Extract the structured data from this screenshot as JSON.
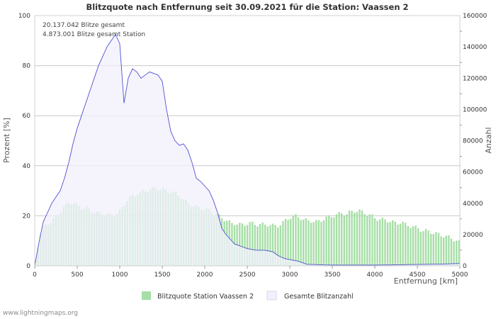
{
  "footer": "www.lightningmaps.org",
  "chart_data": {
    "type": "area",
    "title": "Blitzquote nach Entfernung seit 30.09.2021 für die Station: Vaassen 2",
    "annotations": [
      "20.137.042 Blitze gesamt",
      "4.873.001 Blitze gesamt Station"
    ],
    "xlabel": "Entfernung   [km]",
    "ylabel_left": "Prozent   [%]",
    "ylabel_right": "Anzahl",
    "xlim": [
      0,
      5000
    ],
    "ylim_left": [
      0,
      100
    ],
    "ylim_right": [
      0,
      160000
    ],
    "x_ticks": [
      0,
      500,
      1000,
      1500,
      2000,
      2500,
      3000,
      3500,
      4000,
      4500,
      5000
    ],
    "y_ticks_left": [
      0,
      20,
      40,
      60,
      80,
      100
    ],
    "y_ticks_right": [
      0,
      20000,
      40000,
      60000,
      80000,
      100000,
      120000,
      140000,
      160000
    ],
    "colors": {
      "quote_fill": "#a6dea6",
      "quote_stroke": "#8ccf8c",
      "total_fill": "#f2f0fc",
      "total_line": "#5050d0",
      "grid": "#c8c8c8"
    },
    "series": [
      {
        "name": "Blitzquote Station Vaassen 2",
        "axis": "left",
        "x": [
          0,
          50,
          100,
          150,
          200,
          250,
          300,
          350,
          400,
          450,
          500,
          550,
          600,
          650,
          700,
          750,
          800,
          850,
          900,
          950,
          1000,
          1050,
          1100,
          1150,
          1200,
          1250,
          1300,
          1350,
          1400,
          1450,
          1500,
          1550,
          1600,
          1650,
          1700,
          1750,
          1800,
          1850,
          1900,
          1950,
          2000,
          2050,
          2100,
          2150,
          2200,
          2250,
          2300,
          2350,
          2400,
          2450,
          2500,
          2550,
          2600,
          2650,
          2700,
          2750,
          2800,
          2850,
          2900,
          2950,
          3000,
          3050,
          3100,
          3150,
          3200,
          3250,
          3300,
          3350,
          3400,
          3450,
          3500,
          3550,
          3600,
          3650,
          3700,
          3750,
          3800,
          3850,
          3900,
          3950,
          4000,
          4050,
          4100,
          4150,
          4200,
          4250,
          4300,
          4350,
          4400,
          4450,
          4500,
          4550,
          4600,
          4650,
          4700,
          4750,
          4800,
          4850,
          4900,
          4950,
          5000
        ],
        "values": [
          2,
          12,
          16,
          17,
          18,
          20,
          22,
          24,
          25.5,
          25,
          24,
          23,
          23,
          22,
          21.5,
          21,
          20.5,
          20.5,
          20,
          21,
          22,
          25,
          27,
          28,
          29,
          29.5,
          30,
          30.5,
          31,
          31,
          30.5,
          30,
          29.5,
          29,
          28,
          26,
          25,
          24,
          23.5,
          23,
          22.5,
          22,
          21,
          20,
          19,
          18,
          17,
          17,
          16.5,
          16.5,
          17,
          17,
          16.5,
          16.5,
          16.5,
          16.5,
          16,
          16,
          17,
          18.5,
          19.5,
          20,
          19.5,
          18.5,
          18,
          18,
          17.5,
          18,
          19,
          19.5,
          20,
          20.5,
          21,
          20.5,
          21.5,
          22,
          22,
          21.5,
          20.5,
          20,
          19,
          18.5,
          18.5,
          18,
          17.5,
          17,
          17.5,
          16.5,
          16,
          15.5,
          15,
          14,
          14,
          13.5,
          13,
          12.5,
          12,
          11.5,
          11,
          10,
          9
        ]
      },
      {
        "name": "Gesamte Blitzanzahl",
        "axis": "right",
        "x": [
          0,
          50,
          100,
          150,
          200,
          250,
          300,
          350,
          400,
          450,
          500,
          550,
          600,
          650,
          700,
          750,
          800,
          850,
          900,
          950,
          1000,
          1050,
          1100,
          1150,
          1200,
          1250,
          1300,
          1350,
          1400,
          1450,
          1500,
          1550,
          1600,
          1650,
          1700,
          1750,
          1800,
          1850,
          1900,
          1950,
          2000,
          2050,
          2100,
          2150,
          2200,
          2250,
          2300,
          2350,
          2400,
          2450,
          2500,
          2550,
          2600,
          2650,
          2700,
          2750,
          2800,
          2850,
          2900,
          2950,
          3000,
          3050,
          3100,
          3150,
          3200,
          3300,
          3400,
          3500,
          3600,
          3800,
          4000,
          4200,
          4400,
          4600,
          4800,
          5000
        ],
        "values": [
          0,
          15000,
          28000,
          34000,
          40000,
          44000,
          48000,
          56000,
          66000,
          78000,
          88000,
          96000,
          104000,
          112000,
          120000,
          128000,
          134000,
          140000,
          144000,
          148000,
          142000,
          104000,
          120000,
          126000,
          124000,
          120000,
          122000,
          124000,
          123000,
          122000,
          118000,
          100000,
          86000,
          80000,
          77000,
          78000,
          74000,
          66000,
          56000,
          54000,
          51000,
          48000,
          42000,
          34000,
          24000,
          20000,
          17000,
          14000,
          13000,
          12000,
          11000,
          10500,
          10000,
          10000,
          10000,
          9500,
          9000,
          7000,
          5500,
          4500,
          4000,
          3500,
          3000,
          2000,
          1000,
          800,
          600,
          500,
          500,
          500,
          500,
          600,
          800,
          1000,
          1200,
          1500
        ]
      }
    ],
    "legend": [
      "Blitzquote Station Vaassen 2",
      "Gesamte Blitzanzahl"
    ],
    "legend_position": "bottom"
  }
}
